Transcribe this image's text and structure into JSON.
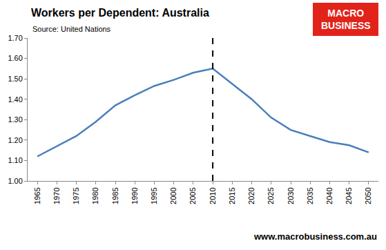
{
  "chart_data": {
    "type": "line",
    "title": "Workers per Dependent: Australia",
    "subtitle": "Source: United Nations",
    "logo": [
      "MACRO",
      "BUSINESS"
    ],
    "footer": "www.macrobusiness.com.au",
    "categories": [
      "1965",
      "1970",
      "1975",
      "1980",
      "1985",
      "1990",
      "1995",
      "2000",
      "2005",
      "2010",
      "2015",
      "2020",
      "2025",
      "2030",
      "2035",
      "2040",
      "2045",
      "2050"
    ],
    "values": [
      1.12,
      1.17,
      1.22,
      1.29,
      1.37,
      1.42,
      1.465,
      1.495,
      1.53,
      1.55,
      1.475,
      1.4,
      1.31,
      1.25,
      1.22,
      1.19,
      1.175,
      1.14
    ],
    "color": "#4a7ebb",
    "ylim": [
      1.0,
      1.7
    ],
    "yticks": [
      {
        "value": 1.0,
        "label": "1.00"
      },
      {
        "value": 1.1,
        "label": "1.10"
      },
      {
        "value": 1.2,
        "label": "1.20"
      },
      {
        "value": 1.3,
        "label": "1.30"
      },
      {
        "value": 1.4,
        "label": "1.40"
      },
      {
        "value": 1.5,
        "label": "1.50"
      },
      {
        "value": 1.6,
        "label": "1.60"
      },
      {
        "value": 1.7,
        "label": "1.70"
      }
    ],
    "grid": false,
    "reference_line": {
      "x": "2010",
      "line_style": "dashed"
    }
  }
}
